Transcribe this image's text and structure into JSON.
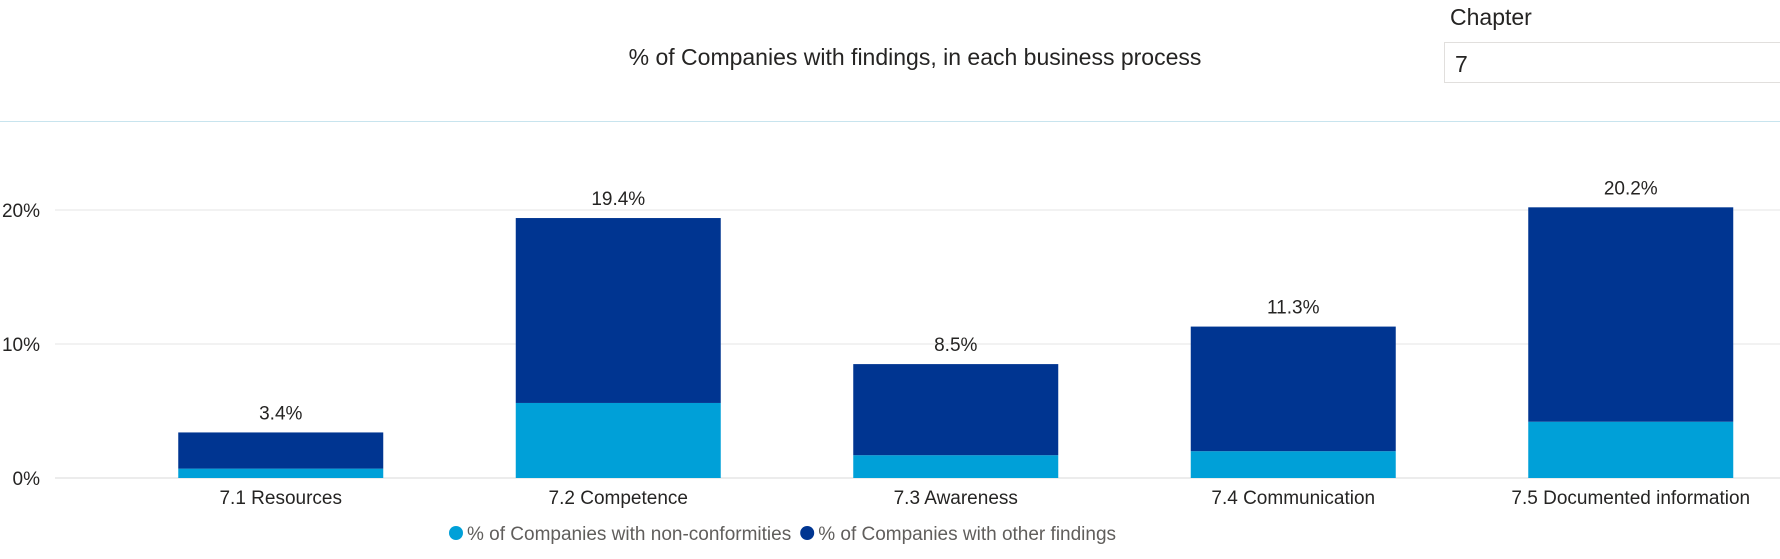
{
  "title": "% of Companies with findings, in each business process",
  "slicer": {
    "label": "Chapter",
    "value": "7"
  },
  "chart_data": {
    "type": "bar",
    "stacked": true,
    "categories": [
      "7.1 Resources",
      "7.2 Competence",
      "7.3 Awareness",
      "7.4 Communication",
      "7.5 Documented information"
    ],
    "series": [
      {
        "name": "% of Companies with non-conformities",
        "color": "#00a0d8",
        "values": [
          0.7,
          5.6,
          1.7,
          2.0,
          4.2
        ]
      },
      {
        "name": "% of Companies with other findings",
        "color": "#003591",
        "values": [
          2.7,
          13.8,
          6.8,
          9.3,
          16.0
        ]
      }
    ],
    "total_labels": [
      "3.4%",
      "19.4%",
      "8.5%",
      "11.3%",
      "20.2%"
    ],
    "y_ticks": [
      "0%",
      "10%",
      "20%"
    ],
    "y_tick_values": [
      0,
      10,
      20
    ],
    "ylim": [
      0,
      26
    ],
    "grid": true,
    "legend_position": "bottom"
  }
}
